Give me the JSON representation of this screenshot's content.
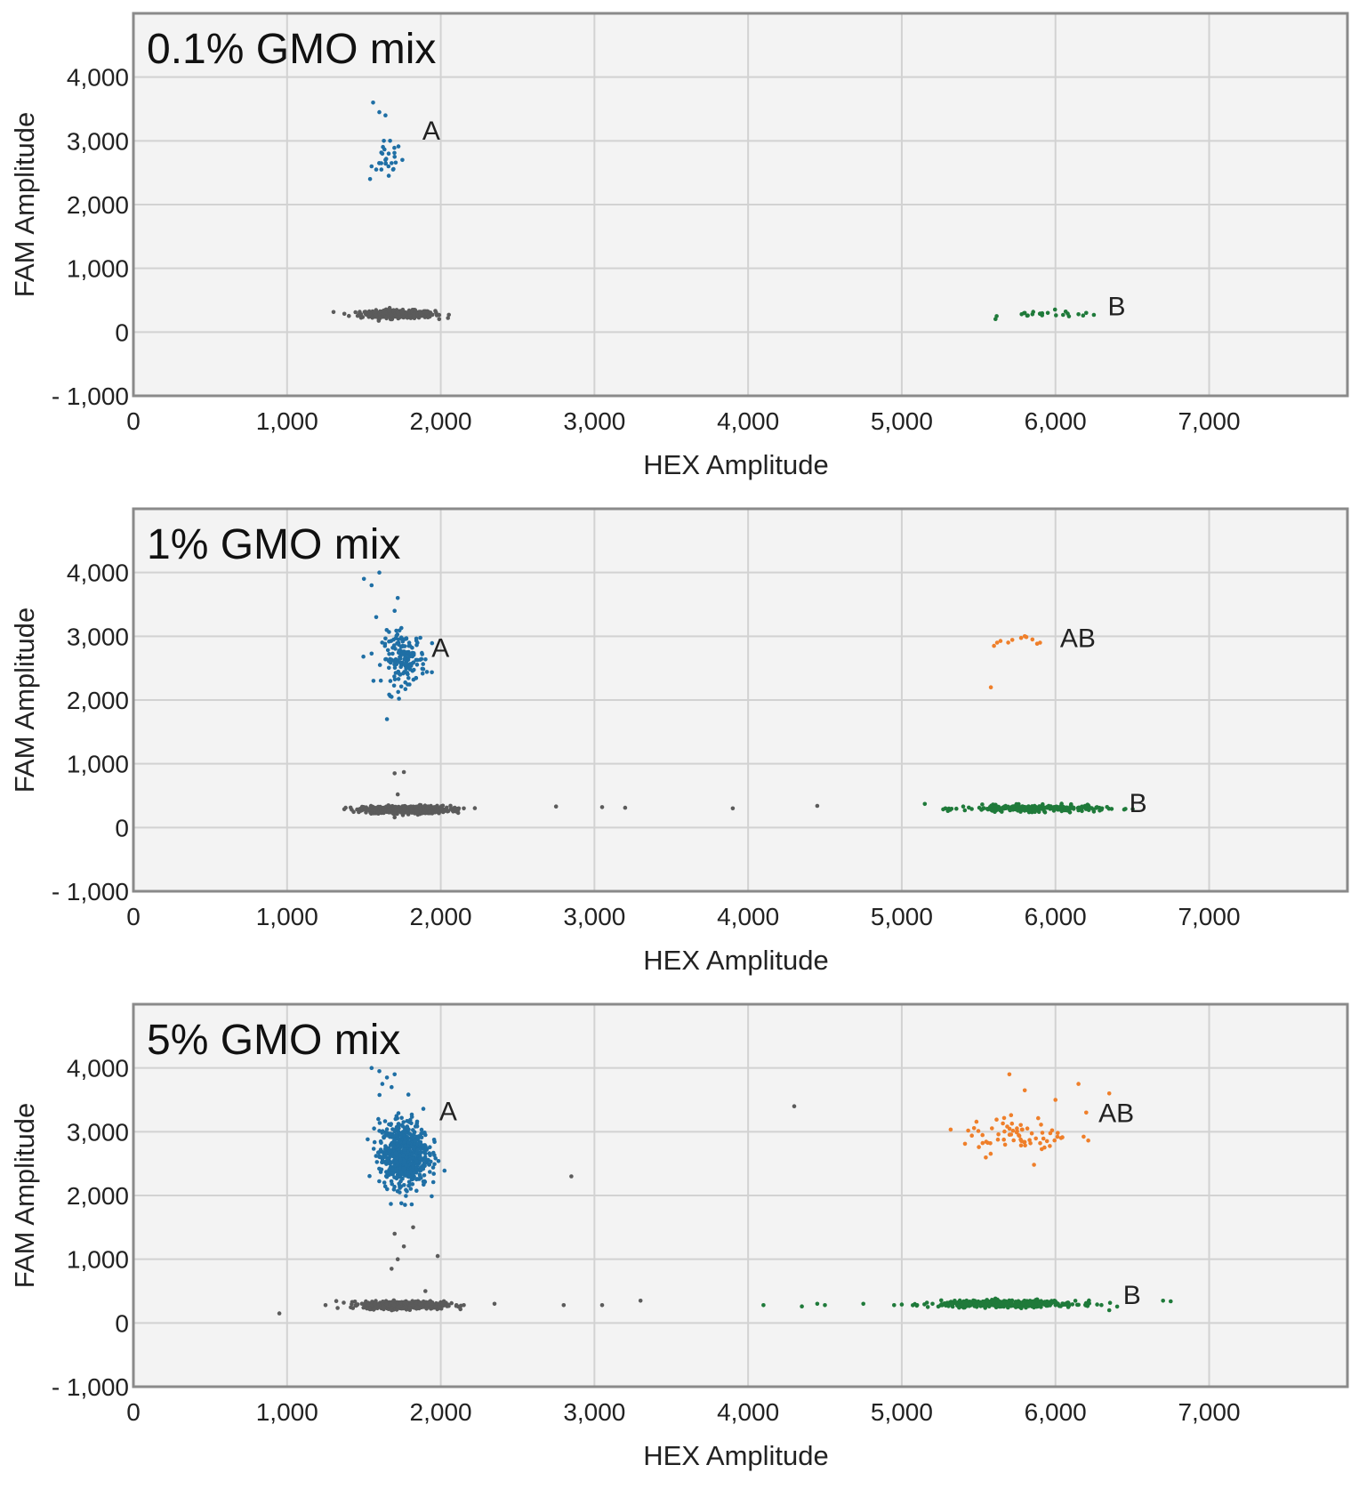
{
  "colors": {
    "negative": "#5b5b5b",
    "fam_positive": "#1f6fa5",
    "hex_positive": "#1f7a3a",
    "double_positive": "#ef7f2a"
  },
  "chart_data": [
    {
      "type": "scatter",
      "title": "0.1% GMO mix",
      "xlabel": "HEX Amplitude",
      "ylabel": "FAM Amplitude",
      "xlim": [
        0,
        7900
      ],
      "ylim": [
        -1000,
        5000
      ],
      "xticks": [
        0,
        1000,
        2000,
        3000,
        4000,
        5000,
        6000,
        7000
      ],
      "yticks": [
        -1000,
        0,
        1000,
        2000,
        3000,
        4000
      ],
      "xtick_labels": [
        "0",
        "1,000",
        "2,000",
        "3,000",
        "4,000",
        "5,000",
        "6,000",
        "7,000"
      ],
      "ytick_labels": [
        "- 1,000",
        "0",
        "1,000",
        "2,000",
        "3,000",
        "4,000"
      ],
      "grid": true,
      "clusters": [
        {
          "name": "negative",
          "label": "",
          "color_key": "negative",
          "center": [
            1720,
            280
          ],
          "spread": [
            120,
            30
          ],
          "count": 420,
          "points": []
        },
        {
          "name": "A",
          "label": "A",
          "color_key": "fam_positive",
          "center": [
            1650,
            2700
          ],
          "spread": [
            50,
            150
          ],
          "count": 16,
          "label_at": [
            1880,
            3020
          ],
          "points": [
            [
              1560,
              3600
            ],
            [
              1600,
              3450
            ],
            [
              1640,
              3400
            ],
            [
              1630,
              3000
            ],
            [
              1670,
              3000
            ],
            [
              1550,
              2600
            ],
            [
              1600,
              2650
            ],
            [
              1640,
              2700
            ],
            [
              1680,
              2650
            ],
            [
              1700,
              2750
            ],
            [
              1750,
              2700
            ],
            [
              1580,
              2550
            ],
            [
              1660,
              2600
            ],
            [
              1540,
              2400
            ],
            [
              1620,
              2800
            ],
            [
              1690,
              2550
            ]
          ]
        },
        {
          "name": "B",
          "label": "B",
          "color_key": "hex_positive",
          "center": [
            5950,
            280
          ],
          "spread": [
            150,
            30
          ],
          "count": 12,
          "label_at": [
            6340,
            260
          ],
          "points": [
            [
              5780,
              280
            ],
            [
              5800,
              300
            ],
            [
              5820,
              260
            ],
            [
              5850,
              280
            ],
            [
              5950,
              300
            ],
            [
              6050,
              270
            ],
            [
              6080,
              290
            ],
            [
              6150,
              280
            ],
            [
              6200,
              300
            ],
            [
              6250,
              270
            ],
            [
              5900,
              290
            ],
            [
              6180,
              260
            ]
          ]
        }
      ]
    },
    {
      "type": "scatter",
      "title": "1% GMO mix",
      "xlabel": "HEX Amplitude",
      "ylabel": "FAM Amplitude",
      "xlim": [
        0,
        7900
      ],
      "ylim": [
        -1000,
        5000
      ],
      "xticks": [
        0,
        1000,
        2000,
        3000,
        4000,
        5000,
        6000,
        7000
      ],
      "yticks": [
        -1000,
        0,
        1000,
        2000,
        3000,
        4000
      ],
      "xtick_labels": [
        "0",
        "1,000",
        "2,000",
        "3,000",
        "4,000",
        "5,000",
        "6,000",
        "7,000"
      ],
      "ytick_labels": [
        "- 1,000",
        "0",
        "1,000",
        "2,000",
        "3,000",
        "4,000"
      ],
      "grid": true,
      "clusters": [
        {
          "name": "negative",
          "label": "",
          "color_key": "negative",
          "center": [
            1780,
            280
          ],
          "spread": [
            140,
            30
          ],
          "count": 520,
          "points": [
            [
              1420,
              280
            ],
            [
              2150,
              300
            ],
            [
              2750,
              330
            ],
            [
              3050,
              320
            ],
            [
              3200,
              310
            ],
            [
              3900,
              300
            ],
            [
              4450,
              340
            ],
            [
              1700,
              850
            ],
            [
              1760,
              870
            ],
            [
              1720,
              520
            ]
          ]
        },
        {
          "name": "A",
          "label": "A",
          "color_key": "fam_positive",
          "center": [
            1760,
            2650
          ],
          "spread": [
            70,
            200
          ],
          "count": 170,
          "label_at": [
            1940,
            2680
          ],
          "points": [
            [
              1500,
              3900
            ],
            [
              1550,
              3800
            ],
            [
              1600,
              4000
            ],
            [
              1720,
              3600
            ],
            [
              1700,
              3400
            ],
            [
              1650,
              1700
            ],
            [
              1680,
              2050
            ],
            [
              1580,
              3300
            ]
          ]
        },
        {
          "name": "AB",
          "label": "AB",
          "color_key": "double_positive",
          "center": [
            5750,
            2900
          ],
          "spread": [
            100,
            80
          ],
          "count": 6,
          "label_at": [
            6030,
            2830
          ],
          "points": [
            [
              5600,
              2850
            ],
            [
              5620,
              2900
            ],
            [
              5800,
              3000
            ],
            [
              5850,
              2950
            ],
            [
              5900,
              2900
            ],
            [
              5580,
              2200
            ]
          ]
        },
        {
          "name": "B",
          "label": "B",
          "color_key": "hex_positive",
          "center": [
            5850,
            300
          ],
          "spread": [
            220,
            25
          ],
          "count": 260,
          "label_at": [
            6480,
            240
          ],
          "points": [
            [
              5150,
              370
            ],
            [
              5300,
              260
            ],
            [
              5400,
              330
            ],
            [
              6250,
              250
            ],
            [
              6300,
              280
            ]
          ]
        }
      ]
    },
    {
      "type": "scatter",
      "title": "5% GMO mix",
      "xlabel": "HEX Amplitude",
      "ylabel": "FAM Amplitude",
      "xlim": [
        0,
        7900
      ],
      "ylim": [
        -1000,
        5000
      ],
      "xticks": [
        0,
        1000,
        2000,
        3000,
        4000,
        5000,
        6000,
        7000
      ],
      "yticks": [
        -1000,
        0,
        1000,
        2000,
        3000,
        4000
      ],
      "xtick_labels": [
        "0",
        "1,000",
        "2,000",
        "3,000",
        "4,000",
        "5,000",
        "6,000",
        "7,000"
      ],
      "ytick_labels": [
        "- 1,000",
        "0",
        "1,000",
        "2,000",
        "3,000",
        "4,000"
      ],
      "grid": true,
      "clusters": [
        {
          "name": "negative",
          "label": "",
          "color_key": "negative",
          "center": [
            1760,
            280
          ],
          "spread": [
            130,
            30
          ],
          "count": 560,
          "points": [
            [
              950,
              150
            ],
            [
              1250,
              280
            ],
            [
              2150,
              280
            ],
            [
              2350,
              300
            ],
            [
              2800,
              280
            ],
            [
              3050,
              280
            ],
            [
              3300,
              350
            ],
            [
              4300,
              3400
            ],
            [
              2850,
              2300
            ],
            [
              1820,
              1500
            ],
            [
              1700,
              1400
            ],
            [
              1760,
              1200
            ],
            [
              1720,
              1000
            ],
            [
              1680,
              850
            ],
            [
              1980,
              1050
            ],
            [
              1900,
              500
            ]
          ]
        },
        {
          "name": "A",
          "label": "A",
          "color_key": "fam_positive",
          "center": [
            1760,
            2650
          ],
          "spread": [
            80,
            260
          ],
          "count": 650,
          "label_at": [
            1990,
            3180
          ],
          "points": [
            [
              1550,
              4000
            ],
            [
              1600,
              3950
            ],
            [
              1650,
              3850
            ],
            [
              1700,
              3900
            ],
            [
              1620,
              3750
            ],
            [
              1680,
              3700
            ]
          ]
        },
        {
          "name": "AB",
          "label": "AB",
          "color_key": "double_positive",
          "center": [
            5750,
            2950
          ],
          "spread": [
            180,
            150
          ],
          "count": 70,
          "label_at": [
            6280,
            3150
          ],
          "points": [
            [
              5700,
              3900
            ],
            [
              5800,
              3650
            ],
            [
              6150,
              3750
            ],
            [
              6350,
              3600
            ],
            [
              6200,
              3300
            ],
            [
              6000,
              3500
            ]
          ]
        },
        {
          "name": "B",
          "label": "B",
          "color_key": "hex_positive",
          "center": [
            5700,
            300
          ],
          "spread": [
            220,
            25
          ],
          "count": 480,
          "label_at": [
            6440,
            300
          ],
          "points": [
            [
              4100,
              280
            ],
            [
              4350,
              260
            ],
            [
              4450,
              300
            ],
            [
              4500,
              280
            ],
            [
              4750,
              300
            ],
            [
              4950,
              280
            ],
            [
              5000,
              290
            ],
            [
              5100,
              280
            ],
            [
              5200,
              300
            ],
            [
              6350,
              200
            ],
            [
              6700,
              350
            ],
            [
              6750,
              340
            ]
          ]
        }
      ]
    }
  ]
}
